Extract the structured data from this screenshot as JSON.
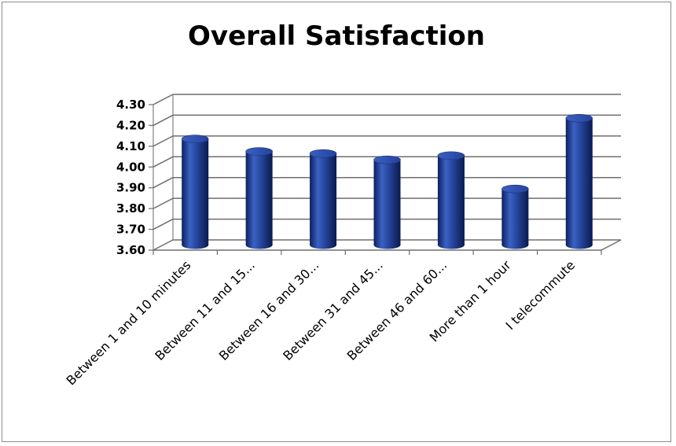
{
  "chart_data": {
    "type": "bar",
    "title": "Overall Satisfaction",
    "xlabel": "",
    "ylabel": "",
    "categories": [
      "Between 1 and 10 minutes",
      "Between 11 and 15...",
      "Between 16 and 30...",
      "Between 31 and 45...",
      "Between 46 and 60...",
      "More than 1 hour",
      "I telecommute"
    ],
    "values": [
      4.11,
      4.05,
      4.04,
      4.01,
      4.03,
      3.87,
      4.21
    ],
    "ylim": [
      3.6,
      4.3
    ],
    "yticks": [
      "3.60",
      "3.70",
      "3.80",
      "3.90",
      "4.00",
      "4.10",
      "4.20",
      "4.30"
    ],
    "grid": true,
    "legend": "none",
    "style": "3d-cylinder",
    "bar_color": "#2b4ea8"
  }
}
